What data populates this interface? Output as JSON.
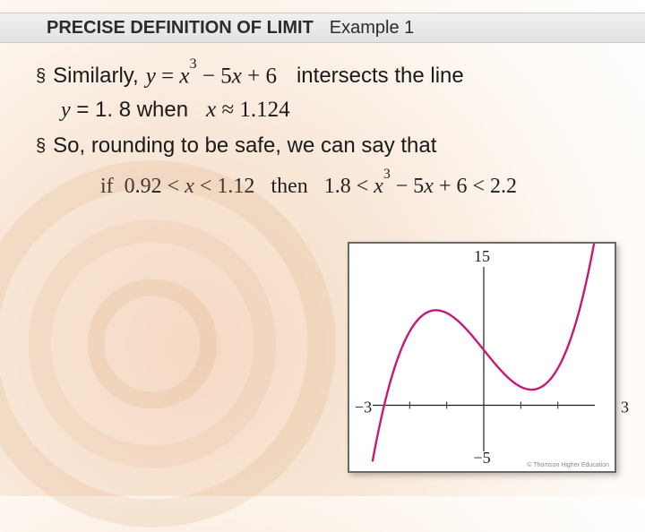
{
  "header": {
    "title": "PRECISE DEFINITION OF LIMIT",
    "example": "Example 1"
  },
  "bullets": {
    "b1_pre": "Similarly,",
    "b1_eq": "y = x³ − 5x + 6",
    "b1_post": "intersects the line",
    "b1_line2_pre": "y = 1. 8 when",
    "b1_line2_eq": "x ≈ 1.124",
    "b2": "So, rounding to be safe, we can say that"
  },
  "conclusion": {
    "if": "if",
    "cond": "0.92 < x < 1.12",
    "then": "then",
    "res": "1.8 < x³ − 5x + 6 < 2.2"
  },
  "graph": {
    "xmin": -3,
    "xmax": 3,
    "ymin": -5,
    "ymax": 15,
    "xmin_label": "−3",
    "xmax_label": "3",
    "ymin_label": "−5",
    "ymax_label": "15",
    "curve_color": "#c8187a",
    "axis_color": "#222222",
    "thomson": "© Thomson Higher Education"
  },
  "colors": {
    "bg_swirl": "#e4b893"
  }
}
